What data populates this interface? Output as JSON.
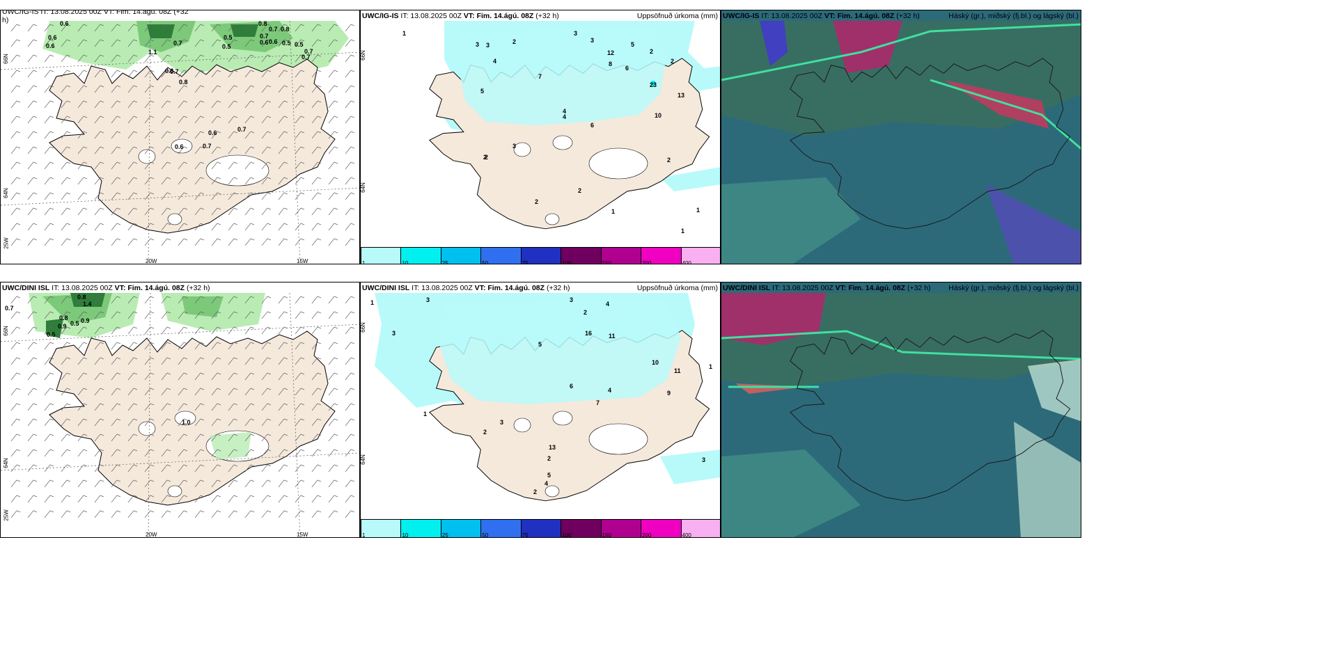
{
  "rows": [
    {
      "model": "UWC/IG-IS",
      "it": "IT: 13.08.2025 00Z",
      "vt_label": "VT:",
      "vt_value": "Fim. 14.ágú. 08Z",
      "lead": "(+32 h)",
      "wind_header_partial": "UWC/IG-IS IT: 13.08.2025 00Z VT: Fim. 14.ágú. 08Z (+32",
      "wind_header_cont": "h)",
      "cloud_labels": [
        "0.6",
        "0.6",
        "0.6",
        "1.1",
        "0.7",
        "0.7",
        "0.8",
        "0.6",
        "0.7",
        "0.5",
        "0.5",
        "0.7",
        "0.6",
        "0.5",
        "0.6",
        "0.8",
        "0.8",
        "0.7",
        "0.5",
        "0.7",
        "0.7",
        "0.6",
        "0.7",
        "0.6"
      ],
      "precip_labels": [
        "1",
        "2",
        "3",
        "3",
        "4",
        "3",
        "12",
        "5",
        "2",
        "2",
        "3",
        "7",
        "8",
        "6",
        "4",
        "13",
        "23",
        "10",
        "5",
        "2",
        "2",
        "1",
        "1",
        "2",
        "3",
        "4",
        "6",
        "2",
        "2",
        "1"
      ]
    },
    {
      "model": "UWC/DINI ISL",
      "it": "IT: 13.08.2025 00Z",
      "vt_label": "VT:",
      "vt_value": "Fim. 14.ágú. 08Z",
      "lead": "(+32 h)",
      "cloud_labels": [
        "0.7",
        "0.8",
        "1.4",
        "0.8",
        "0.9",
        "0.9",
        "0.5",
        "0.5",
        "1.0"
      ],
      "precip_labels": [
        "1",
        "3",
        "3",
        "3",
        "2",
        "4",
        "5",
        "16",
        "11",
        "10",
        "11",
        "9",
        "6",
        "7",
        "4",
        "13",
        "2",
        "3",
        "2",
        "2",
        "5",
        "4",
        "3",
        "1",
        "1"
      ]
    }
  ],
  "precip_title": "Uppsöfnuð úrkoma (mm)",
  "cloud_title": "Háský (gr.), miðský (fj.bl.) og lágský (bl.)",
  "axis": {
    "lon_20w": "20W",
    "lon_15w": "15W",
    "lat_66n": "66N",
    "lat_64n": "64N",
    "lat_25w": "25W"
  },
  "colorbar": {
    "ticks": [
      "1",
      "10",
      "25",
      "50",
      "75",
      "100",
      "150",
      "200",
      "400"
    ],
    "colors": [
      "#b8fafa",
      "#00f0f0",
      "#00c0f0",
      "#3070f0",
      "#2030c0",
      "#700060",
      "#b00090",
      "#f000c0",
      "#f8b0f0"
    ]
  },
  "palette": {
    "land": "#f5e9dc",
    "precip_light": "#b8fafa",
    "cloud_green_light": "#b9ecb3",
    "cloud_green_mid": "#7cc97a",
    "cloud_green_dark": "#2f7d3a",
    "sat_bg": "#2c6a7a",
    "sat_high": "#a0306a",
    "sat_green": "#40e0a0"
  }
}
